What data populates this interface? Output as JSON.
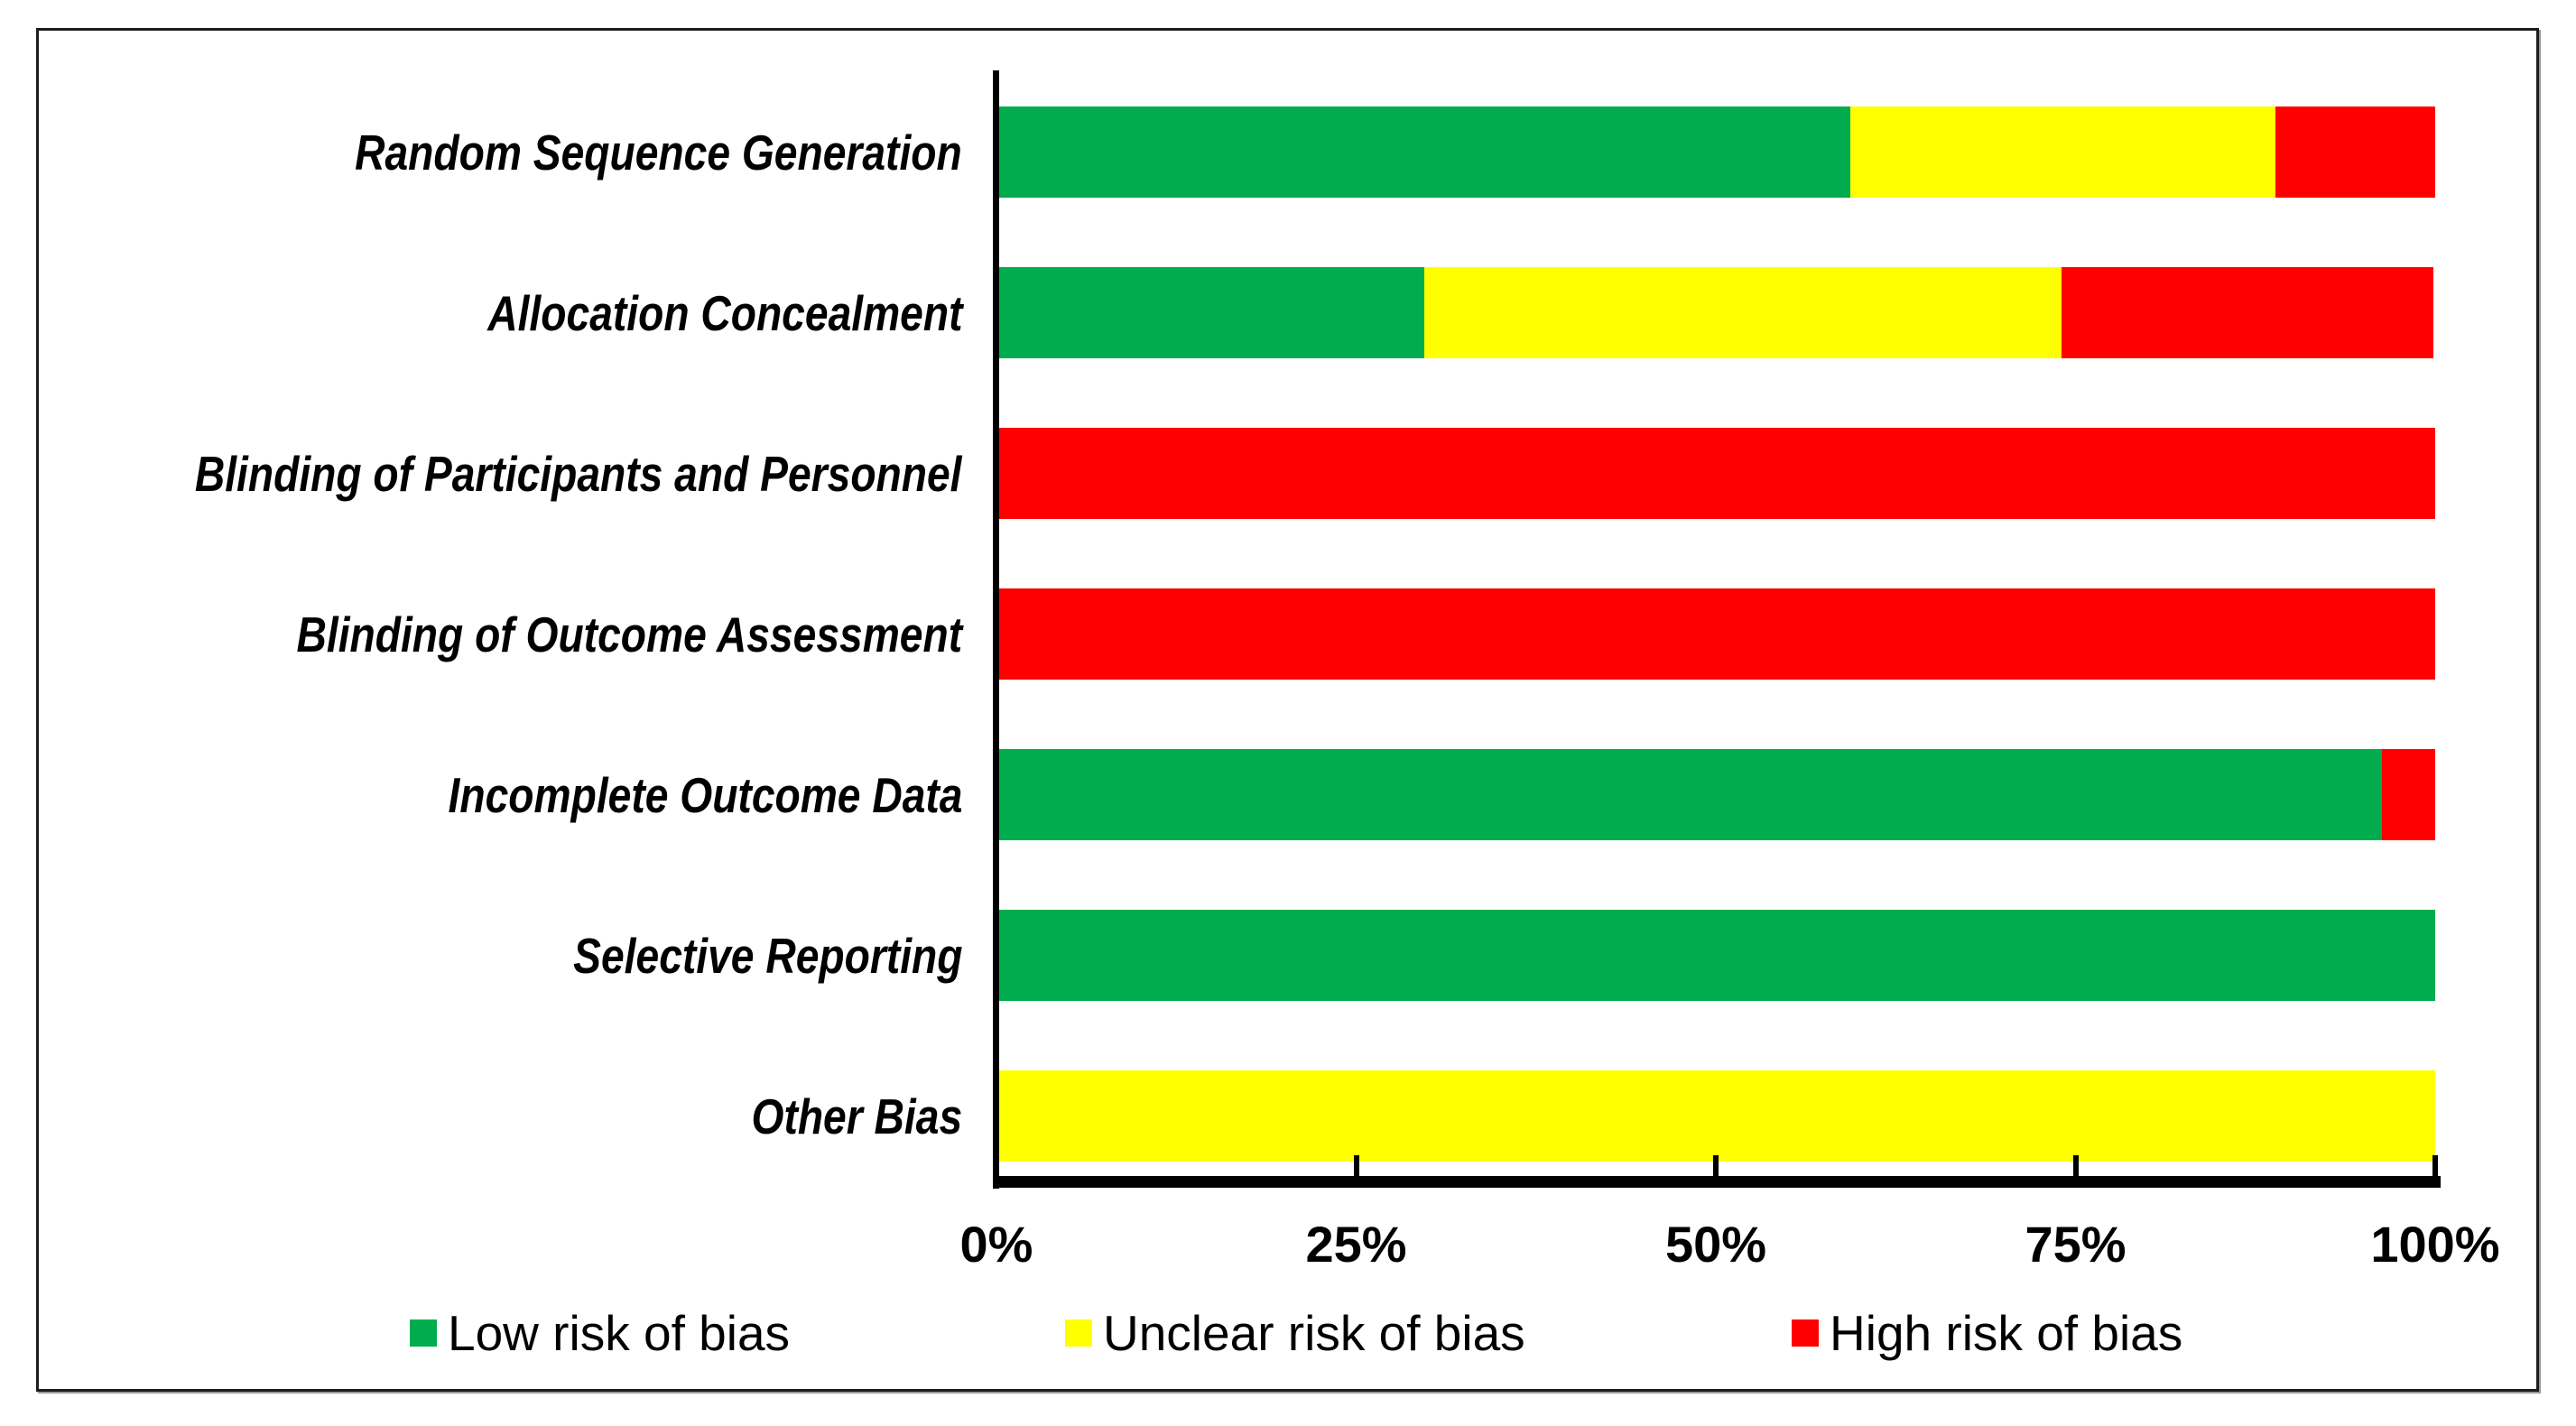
{
  "figure": {
    "background_color": "#FFFFFF",
    "border_color": "#1D1D1D"
  },
  "chart_data": {
    "type": "bar",
    "orientation": "horizontal",
    "stacked": true,
    "value_unit": "percent",
    "title": "",
    "xlabel": "",
    "ylabel": "",
    "grid": false,
    "legend_position": "bottom",
    "categories": [
      "Random Sequence Generation",
      "Allocation Concealment",
      "Blinding of Participants and Personnel",
      "Blinding of Outcome Assessment",
      "Incomplete Outcome Data",
      "Selective Reporting",
      "Other Bias"
    ],
    "series": [
      {
        "name": "Low risk of bias",
        "color": "#00AC4E",
        "values": [
          59.3,
          29.6,
          0,
          0,
          96.3,
          100,
          0
        ]
      },
      {
        "name": "Unclear risk of bias",
        "color": "#FFFF00",
        "values": [
          29.6,
          44.4,
          0,
          0,
          0,
          0,
          100
        ]
      },
      {
        "name": "High risk of bias",
        "color": "#FF0000",
        "values": [
          11.1,
          25.9,
          100,
          100,
          3.7,
          0,
          0
        ]
      }
    ],
    "x_axis": {
      "min": 0,
      "max": 100,
      "tick_labels": [
        "0%",
        "25%",
        "50%",
        "75%",
        "100%"
      ],
      "tick_values": [
        0,
        25,
        50,
        75,
        100
      ]
    }
  }
}
